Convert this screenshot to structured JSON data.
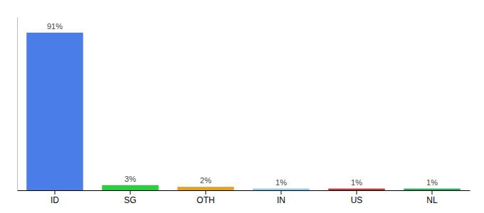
{
  "chart_data": {
    "type": "bar",
    "categories": [
      "ID",
      "SG",
      "OTH",
      "IN",
      "US",
      "NL"
    ],
    "values": [
      91,
      3,
      2,
      1,
      1,
      1
    ],
    "colors": [
      "#4a7de8",
      "#2ecc40",
      "#e8a020",
      "#87ceeb",
      "#c0392b",
      "#27ae60"
    ],
    "ylim": [
      0,
      100
    ],
    "data_labels": true,
    "value_labels": [
      "91%",
      "3%",
      "2%",
      "1%",
      "1%",
      "1%"
    ],
    "tick_labels": "x"
  }
}
